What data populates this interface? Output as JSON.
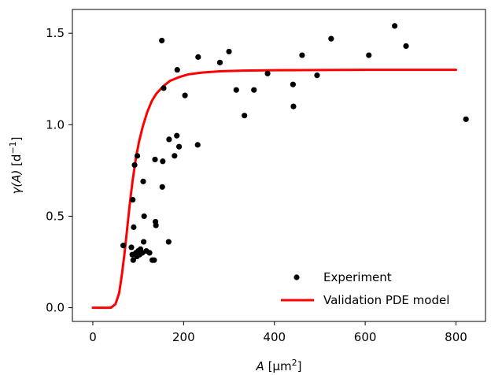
{
  "chart_data": {
    "type": "scatter",
    "xlabel_italic": "A",
    "xlabel_rest": " [μm",
    "xlabel_sup": "2",
    "xlabel_close": "]",
    "ylabel_italic": "γ(A)",
    "ylabel_rest": " [d",
    "ylabel_sup": "−1",
    "ylabel_close": "]",
    "xlim": [
      -45,
      865
    ],
    "ylim": [
      -0.075,
      1.63
    ],
    "xticks": [
      0,
      200,
      400,
      600,
      800
    ],
    "xtick_labels": [
      "0",
      "200",
      "400",
      "600",
      "800"
    ],
    "yticks": [
      0.0,
      0.5,
      1.0,
      1.5
    ],
    "ytick_labels": [
      "0.0",
      "0.5",
      "1.0",
      "1.5"
    ],
    "grid": false,
    "legend_position": "lower-right",
    "series": [
      {
        "name": "Experiment",
        "kind": "scatter",
        "color": "#000000",
        "points": [
          [
            67,
            0.34
          ],
          [
            85,
            0.33
          ],
          [
            87,
            0.29
          ],
          [
            88,
            0.59
          ],
          [
            89,
            0.26
          ],
          [
            90,
            0.44
          ],
          [
            92,
            0.78
          ],
          [
            95,
            0.3
          ],
          [
            97,
            0.28
          ],
          [
            98,
            0.83
          ],
          [
            100,
            0.31
          ],
          [
            103,
            0.29
          ],
          [
            105,
            0.32
          ],
          [
            109,
            0.3
          ],
          [
            111,
            0.69
          ],
          [
            112,
            0.36
          ],
          [
            113,
            0.5
          ],
          [
            118,
            0.31
          ],
          [
            125,
            0.3
          ],
          [
            131,
            0.26
          ],
          [
            135,
            0.26
          ],
          [
            137,
            0.81
          ],
          [
            138,
            0.47
          ],
          [
            139,
            0.45
          ],
          [
            152,
            1.46
          ],
          [
            153,
            0.66
          ],
          [
            154,
            0.8
          ],
          [
            156,
            1.2
          ],
          [
            167,
            0.36
          ],
          [
            168,
            0.92
          ],
          [
            180,
            0.83
          ],
          [
            185,
            0.94
          ],
          [
            186,
            1.3
          ],
          [
            190,
            0.88
          ],
          [
            203,
            1.16
          ],
          [
            231,
            0.89
          ],
          [
            232,
            1.37
          ],
          [
            280,
            1.34
          ],
          [
            300,
            1.4
          ],
          [
            316,
            1.19
          ],
          [
            334,
            1.05
          ],
          [
            355,
            1.19
          ],
          [
            385,
            1.28
          ],
          [
            441,
            1.22
          ],
          [
            442,
            1.1
          ],
          [
            461,
            1.38
          ],
          [
            494,
            1.27
          ],
          [
            525,
            1.47
          ],
          [
            608,
            1.38
          ],
          [
            665,
            1.54
          ],
          [
            690,
            1.43
          ],
          [
            822,
            1.03
          ]
        ]
      },
      {
        "name": "Validation PDE model",
        "kind": "line",
        "color": "#ff0000",
        "points": [
          [
            0,
            0.0
          ],
          [
            40,
            0.0
          ],
          [
            50,
            0.02
          ],
          [
            58,
            0.08
          ],
          [
            64,
            0.18
          ],
          [
            70,
            0.3
          ],
          [
            76,
            0.44
          ],
          [
            82,
            0.58
          ],
          [
            88,
            0.7
          ],
          [
            95,
            0.82
          ],
          [
            102,
            0.91
          ],
          [
            110,
            0.99
          ],
          [
            120,
            1.07
          ],
          [
            130,
            1.13
          ],
          [
            140,
            1.17
          ],
          [
            155,
            1.21
          ],
          [
            170,
            1.24
          ],
          [
            190,
            1.26
          ],
          [
            210,
            1.275
          ],
          [
            240,
            1.285
          ],
          [
            280,
            1.292
          ],
          [
            330,
            1.296
          ],
          [
            400,
            1.298
          ],
          [
            500,
            1.299
          ],
          [
            600,
            1.3
          ],
          [
            700,
            1.3
          ],
          [
            800,
            1.3
          ]
        ]
      }
    ]
  }
}
